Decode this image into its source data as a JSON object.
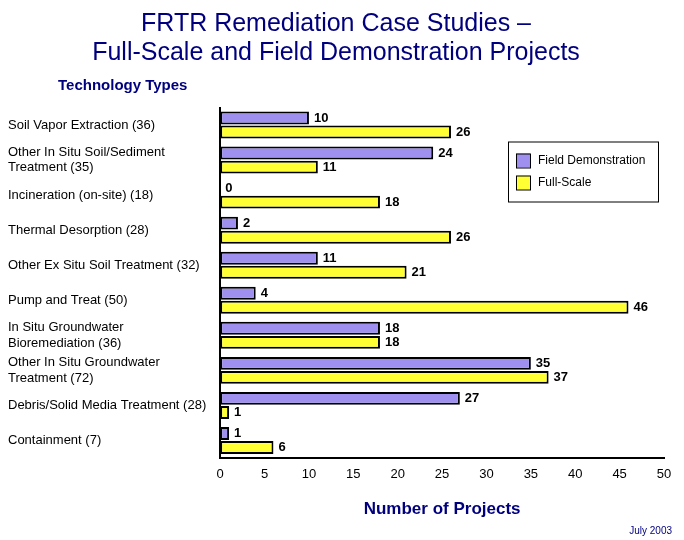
{
  "chart_data": {
    "type": "bar",
    "orientation": "horizontal",
    "title": [
      "FRTR Remediation Case Studies –",
      "Full-Scale and Field Demonstration Projects"
    ],
    "y_label": "Technology Types",
    "x_label": "Number of Projects",
    "annotation": "July 2003",
    "categories": [
      "Soil Vapor Extraction (36)",
      "Other In Situ Soil/Sediment Treatment (35)",
      "Incineration (on-site) (18)",
      "Thermal Desorption (28)",
      "Other Ex Situ Soil Treatment (32)",
      "Pump and Treat (50)",
      "In Situ Groundwater Bioremediation (36)",
      "Other In Situ Groundwater Treatment (72)",
      "Debris/Solid Media Treatment (28)",
      "Containment (7)"
    ],
    "series": [
      {
        "name": "Field Demonstration",
        "color": "#9f8fef",
        "values": [
          10,
          24,
          0,
          2,
          11,
          4,
          18,
          35,
          27,
          1
        ]
      },
      {
        "name": "Full-Scale",
        "color": "#ffff33",
        "values": [
          26,
          11,
          18,
          26,
          21,
          46,
          18,
          37,
          1,
          6
        ]
      }
    ],
    "xlim": [
      0,
      50
    ],
    "xticks": [
      0,
      5,
      10,
      15,
      20,
      25,
      30,
      35,
      40,
      45,
      50
    ],
    "grid": false,
    "legend": "top-right",
    "data_labels": true
  }
}
